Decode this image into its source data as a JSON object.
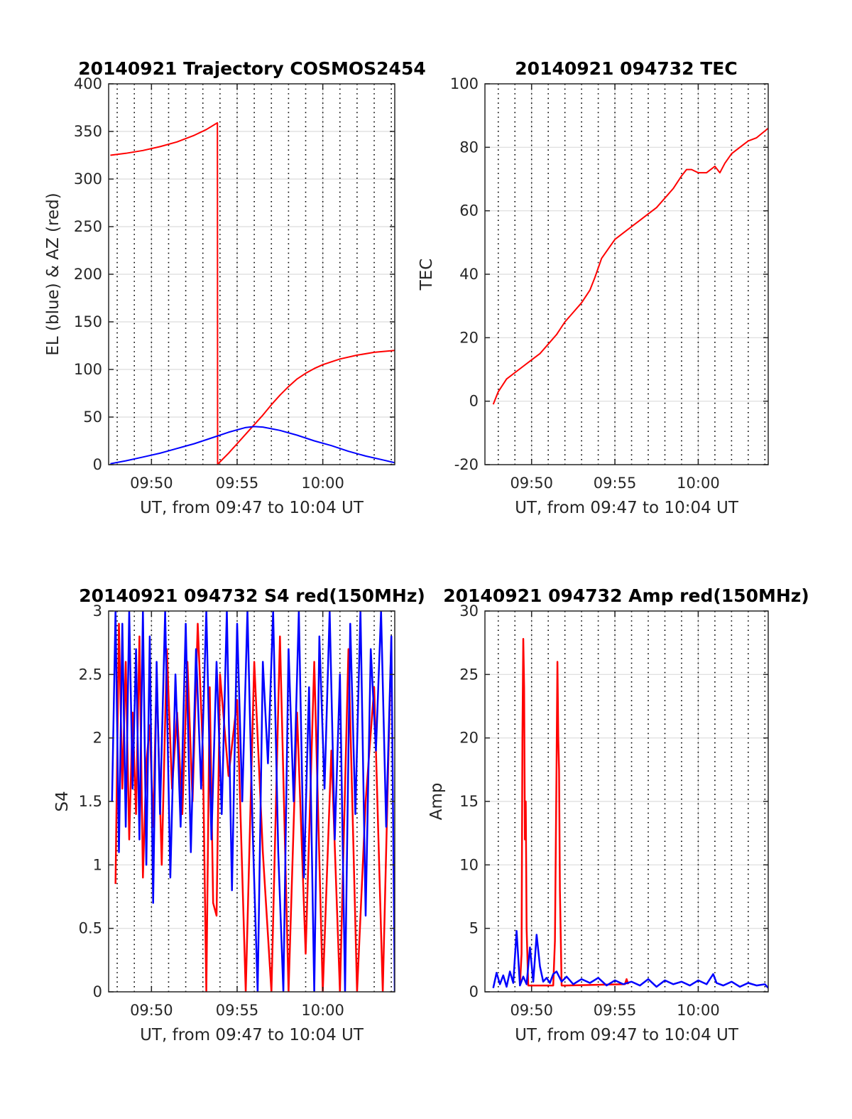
{
  "figure": {
    "background": "#ffffff",
    "colors": {
      "red": "#ff0000",
      "blue": "#0000ff",
      "grid": "#dcdcdc",
      "axis": "#262626"
    }
  },
  "chart_data": [
    {
      "id": "trajectory",
      "type": "line",
      "title": "20140921 Trajectory COSMOS2454",
      "xlabel": "UT, from 09:47 to 10:04 UT",
      "ylabel": "EL (blue) & AZ (red)",
      "xlim_minutes": [
        587.5,
        604.2
      ],
      "ylim": [
        0,
        400
      ],
      "yticks": [
        0,
        50,
        100,
        150,
        200,
        250,
        300,
        350,
        400
      ],
      "xticks": [
        {
          "value": 590,
          "label": "09:50"
        },
        {
          "value": 595,
          "label": "09:55"
        },
        {
          "value": 600,
          "label": "10:00"
        }
      ],
      "grid": true,
      "series": [
        {
          "color": "#ff0000",
          "x": [
            587.6,
            588.5,
            589.5,
            590.5,
            591.5,
            592.5,
            593.2,
            593.85,
            593.86,
            594.0,
            594.5,
            595.0,
            595.5,
            596.0,
            596.5,
            597.0,
            597.5,
            598.0,
            598.5,
            599.0,
            599.5,
            600.0,
            601.0,
            602.0,
            603.0,
            604.2
          ],
          "y": [
            325,
            327,
            330,
            334,
            339,
            346,
            352,
            359,
            0,
            3,
            12,
            22,
            32,
            42,
            52,
            63,
            73,
            82,
            90,
            96,
            101,
            105,
            111,
            115,
            118,
            120
          ]
        },
        {
          "color": "#0000ff",
          "x": [
            587.6,
            588.5,
            589.5,
            590.5,
            591.5,
            592.5,
            593.5,
            594.5,
            595.5,
            596.0,
            596.5,
            597.5,
            598.5,
            599.5,
            600.5,
            601.5,
            602.5,
            603.5,
            604.2
          ],
          "y": [
            1,
            4,
            8,
            12,
            17,
            22,
            28,
            34,
            39,
            40,
            39.5,
            36,
            31,
            25,
            20,
            14,
            9,
            5,
            2
          ]
        }
      ]
    },
    {
      "id": "tec",
      "type": "line",
      "title": "20140921 094732 TEC",
      "xlabel": "UT, from 09:47 to 10:04 UT",
      "ylabel": "TEC",
      "xlim_minutes": [
        587.2,
        604.2
      ],
      "ylim": [
        -20,
        100
      ],
      "yticks": [
        -20,
        0,
        20,
        40,
        60,
        80,
        100
      ],
      "xticks": [
        {
          "value": 590,
          "label": "09:50"
        },
        {
          "value": 595,
          "label": "09:55"
        },
        {
          "value": 600,
          "label": "10:00"
        }
      ],
      "grid": true,
      "series": [
        {
          "color": "#ff0000",
          "x": [
            587.7,
            588.0,
            588.5,
            589.0,
            589.5,
            590.0,
            590.5,
            591.0,
            591.5,
            592.0,
            592.5,
            593.0,
            593.5,
            593.8,
            594.2,
            594.6,
            595.0,
            595.5,
            596.0,
            596.5,
            597.0,
            597.5,
            598.0,
            598.5,
            599.0,
            599.3,
            599.6,
            600.0,
            600.5,
            601.0,
            601.3,
            601.6,
            602.0,
            602.5,
            603.0,
            603.5,
            604.2
          ],
          "y": [
            -1,
            3,
            7,
            9,
            11,
            13,
            15,
            18,
            21,
            25,
            28,
            31,
            35,
            39,
            45,
            48,
            51,
            53,
            55,
            57,
            59,
            61,
            64,
            67,
            71,
            73,
            73,
            72,
            72,
            74,
            72,
            75,
            78,
            80,
            82,
            83,
            86
          ]
        }
      ]
    },
    {
      "id": "s4",
      "type": "line",
      "title": "20140921 094732 S4 red(150MHz)",
      "xlabel": "UT, from 09:47 to 10:04 UT",
      "ylabel": "S4",
      "xlim_minutes": [
        587.5,
        604.2
      ],
      "ylim": [
        0,
        3
      ],
      "yticks": [
        0,
        0.5,
        1,
        1.5,
        2,
        2.5,
        3
      ],
      "xticks": [
        {
          "value": 590,
          "label": "09:50"
        },
        {
          "value": 595,
          "label": "09:55"
        },
        {
          "value": 600,
          "label": "10:00"
        }
      ],
      "grid": true,
      "series": [
        {
          "color": "#ff0000",
          "x": [
            587.9,
            588.1,
            588.3,
            588.5,
            588.7,
            588.9,
            589.1,
            589.3,
            589.5,
            589.7,
            589.9,
            590.1,
            590.3,
            590.6,
            590.9,
            591.2,
            591.5,
            591.8,
            592.1,
            592.4,
            592.7,
            593.0,
            593.2,
            593.4,
            593.6,
            593.8,
            594.0,
            594.5,
            595.0,
            595.5,
            596.0,
            596.5,
            597.0,
            597.5,
            598.0,
            598.5,
            599.0,
            599.5,
            600.0,
            600.5,
            601.0,
            601.5,
            602.0,
            602.5,
            603.0,
            603.5,
            604.0
          ],
          "y": [
            0.85,
            2.9,
            1.6,
            2.6,
            1.2,
            2.2,
            1.4,
            2.8,
            0.9,
            1.8,
            2.1,
            1.3,
            2.5,
            1.0,
            2.7,
            1.6,
            2.2,
            1.4,
            2.6,
            1.5,
            2.9,
            1.9,
            0,
            2.4,
            0.7,
            0.6,
            2.5,
            1.7,
            2.3,
            0,
            2.6,
            1.1,
            0,
            2.8,
            0,
            2.2,
            0.3,
            2.6,
            0,
            1.9,
            0,
            2.7,
            0,
            1.5,
            2.4,
            0,
            2.8
          ]
        },
        {
          "color": "#0000ff",
          "x": [
            587.7,
            587.9,
            588.1,
            588.3,
            588.5,
            588.7,
            588.9,
            589.1,
            589.3,
            589.5,
            589.7,
            589.9,
            590.1,
            590.3,
            590.5,
            590.8,
            591.1,
            591.4,
            591.7,
            592.0,
            592.3,
            592.6,
            592.9,
            593.2,
            593.5,
            593.8,
            594.1,
            594.4,
            594.7,
            595.0,
            595.3,
            595.6,
            595.9,
            596.2,
            596.5,
            596.8,
            597.1,
            597.4,
            597.7,
            598.0,
            598.3,
            598.6,
            598.9,
            599.2,
            599.5,
            599.8,
            600.1,
            600.4,
            600.7,
            601.0,
            601.3,
            601.6,
            601.9,
            602.2,
            602.5,
            602.8,
            603.1,
            603.4,
            603.7,
            604.0,
            604.2
          ],
          "y": [
            1.5,
            3,
            1.1,
            2.9,
            1.3,
            3,
            1.6,
            2.7,
            1.2,
            3,
            1.0,
            2.8,
            0.7,
            2.6,
            1.4,
            3,
            0.9,
            2.5,
            1.3,
            2.9,
            1.1,
            2.7,
            1.6,
            3,
            1.2,
            2.6,
            1.4,
            3,
            0.8,
            2.9,
            1.5,
            3,
            1.3,
            0,
            2.6,
            1.8,
            3,
            1.1,
            0,
            2.7,
            1.5,
            3,
            0.9,
            2.4,
            0,
            2.8,
            1.6,
            3,
            1.2,
            2.5,
            0,
            2.9,
            1.4,
            3,
            0.6,
            2.7,
            1.9,
            3,
            1.3,
            2.8,
            0
          ]
        }
      ]
    },
    {
      "id": "amp",
      "type": "line",
      "title": "20140921 094732 Amp red(150MHz)",
      "xlabel": "UT, from 09:47 to 10:04 UT",
      "ylabel": "Amp",
      "xlim_minutes": [
        587.2,
        604.2
      ],
      "ylim": [
        0,
        30
      ],
      "yticks": [
        0,
        5,
        10,
        15,
        20,
        25,
        30
      ],
      "xticks": [
        {
          "value": 590,
          "label": "09:50"
        },
        {
          "value": 595,
          "label": "09:55"
        },
        {
          "value": 600,
          "label": "10:00"
        }
      ],
      "grid": true,
      "series": [
        {
          "color": "#ff0000",
          "x": [
            589.3,
            589.4,
            589.45,
            589.5,
            589.55,
            589.6,
            589.65,
            589.7,
            589.8,
            591.3,
            591.4,
            591.5,
            591.55,
            591.6,
            591.65,
            591.7,
            591.8,
            592.0,
            595.6,
            595.7,
            595.8
          ],
          "y": [
            0.5,
            3,
            20,
            27.8,
            24,
            12,
            15,
            5,
            0.5,
            0.5,
            4,
            18,
            26,
            20,
            17.5,
            8,
            0.5,
            0.5,
            0.6,
            1.0,
            0.6
          ]
        },
        {
          "color": "#0000ff",
          "x": [
            587.7,
            587.9,
            588.1,
            588.3,
            588.5,
            588.7,
            588.9,
            589.1,
            589.3,
            589.5,
            589.7,
            589.9,
            590.1,
            590.3,
            590.5,
            590.7,
            590.9,
            591.1,
            591.3,
            591.5,
            591.8,
            592.1,
            592.5,
            593.0,
            593.5,
            594.0,
            594.5,
            595.0,
            595.5,
            596.0,
            596.5,
            597.0,
            597.5,
            598.0,
            598.5,
            599.0,
            599.5,
            600.0,
            600.5,
            600.9,
            601.1,
            601.5,
            602.0,
            602.5,
            603.0,
            603.5,
            604.0,
            604.2
          ],
          "y": [
            0.3,
            1.5,
            0.6,
            1.3,
            0.4,
            1.6,
            0.7,
            4.8,
            0.5,
            1.2,
            0.6,
            3.5,
            0.8,
            4.5,
            2.0,
            0.8,
            1.1,
            0.7,
            1.4,
            1.6,
            0.8,
            1.2,
            0.6,
            1.0,
            0.7,
            1.1,
            0.5,
            0.9,
            0.6,
            0.8,
            0.5,
            1.0,
            0.4,
            0.9,
            0.6,
            0.8,
            0.5,
            0.9,
            0.6,
            1.4,
            0.7,
            0.5,
            0.8,
            0.4,
            0.7,
            0.5,
            0.6,
            0.3
          ]
        }
      ]
    }
  ]
}
